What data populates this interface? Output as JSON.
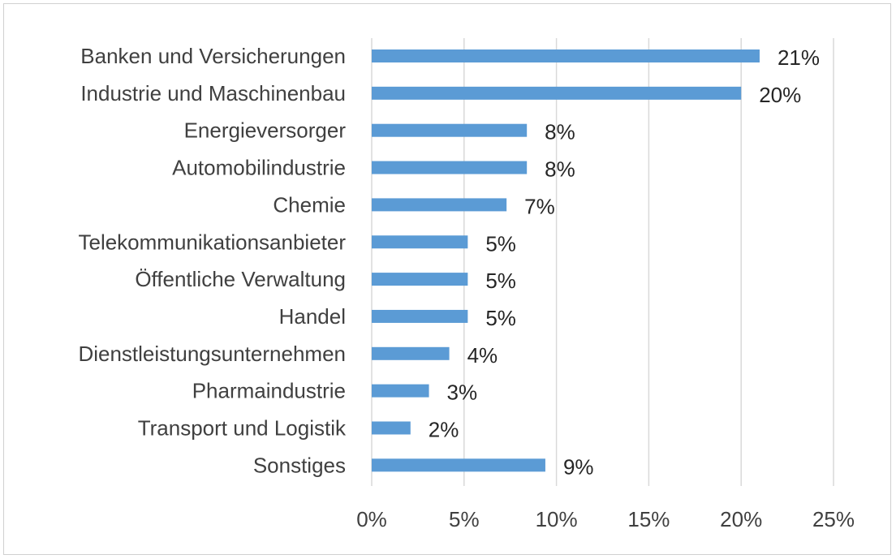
{
  "chart_data": {
    "type": "bar",
    "orientation": "horizontal",
    "title": "",
    "xlabel": "",
    "ylabel": "",
    "categories": [
      "Banken und Versicherungen",
      "Industrie und Maschinenbau",
      "Energieversorger",
      "Automobilindustrie",
      "Chemie",
      "Telekommunikationsanbieter",
      "Öffentliche Verwaltung",
      "Handel",
      "Dienstleistungsunternehmen",
      "Pharmaindustrie",
      "Transport und Logistik",
      "Sonstiges"
    ],
    "values": [
      21,
      20,
      8.4,
      8.4,
      7.3,
      5.2,
      5.2,
      5.2,
      4.2,
      3.1,
      2.1,
      9.4
    ],
    "value_labels": [
      "21%",
      "20%",
      "8%",
      "8%",
      "7%",
      "5%",
      "5%",
      "5%",
      "4%",
      "3%",
      "2%",
      "9%"
    ],
    "xlim": [
      0,
      25
    ],
    "x_ticks": [
      0,
      5,
      10,
      15,
      20,
      25
    ],
    "x_tick_labels": [
      "0%",
      "5%",
      "10%",
      "15%",
      "20%",
      "25%"
    ],
    "grid": "vertical",
    "legend": "none",
    "bar_color": "#5b9bd5"
  }
}
